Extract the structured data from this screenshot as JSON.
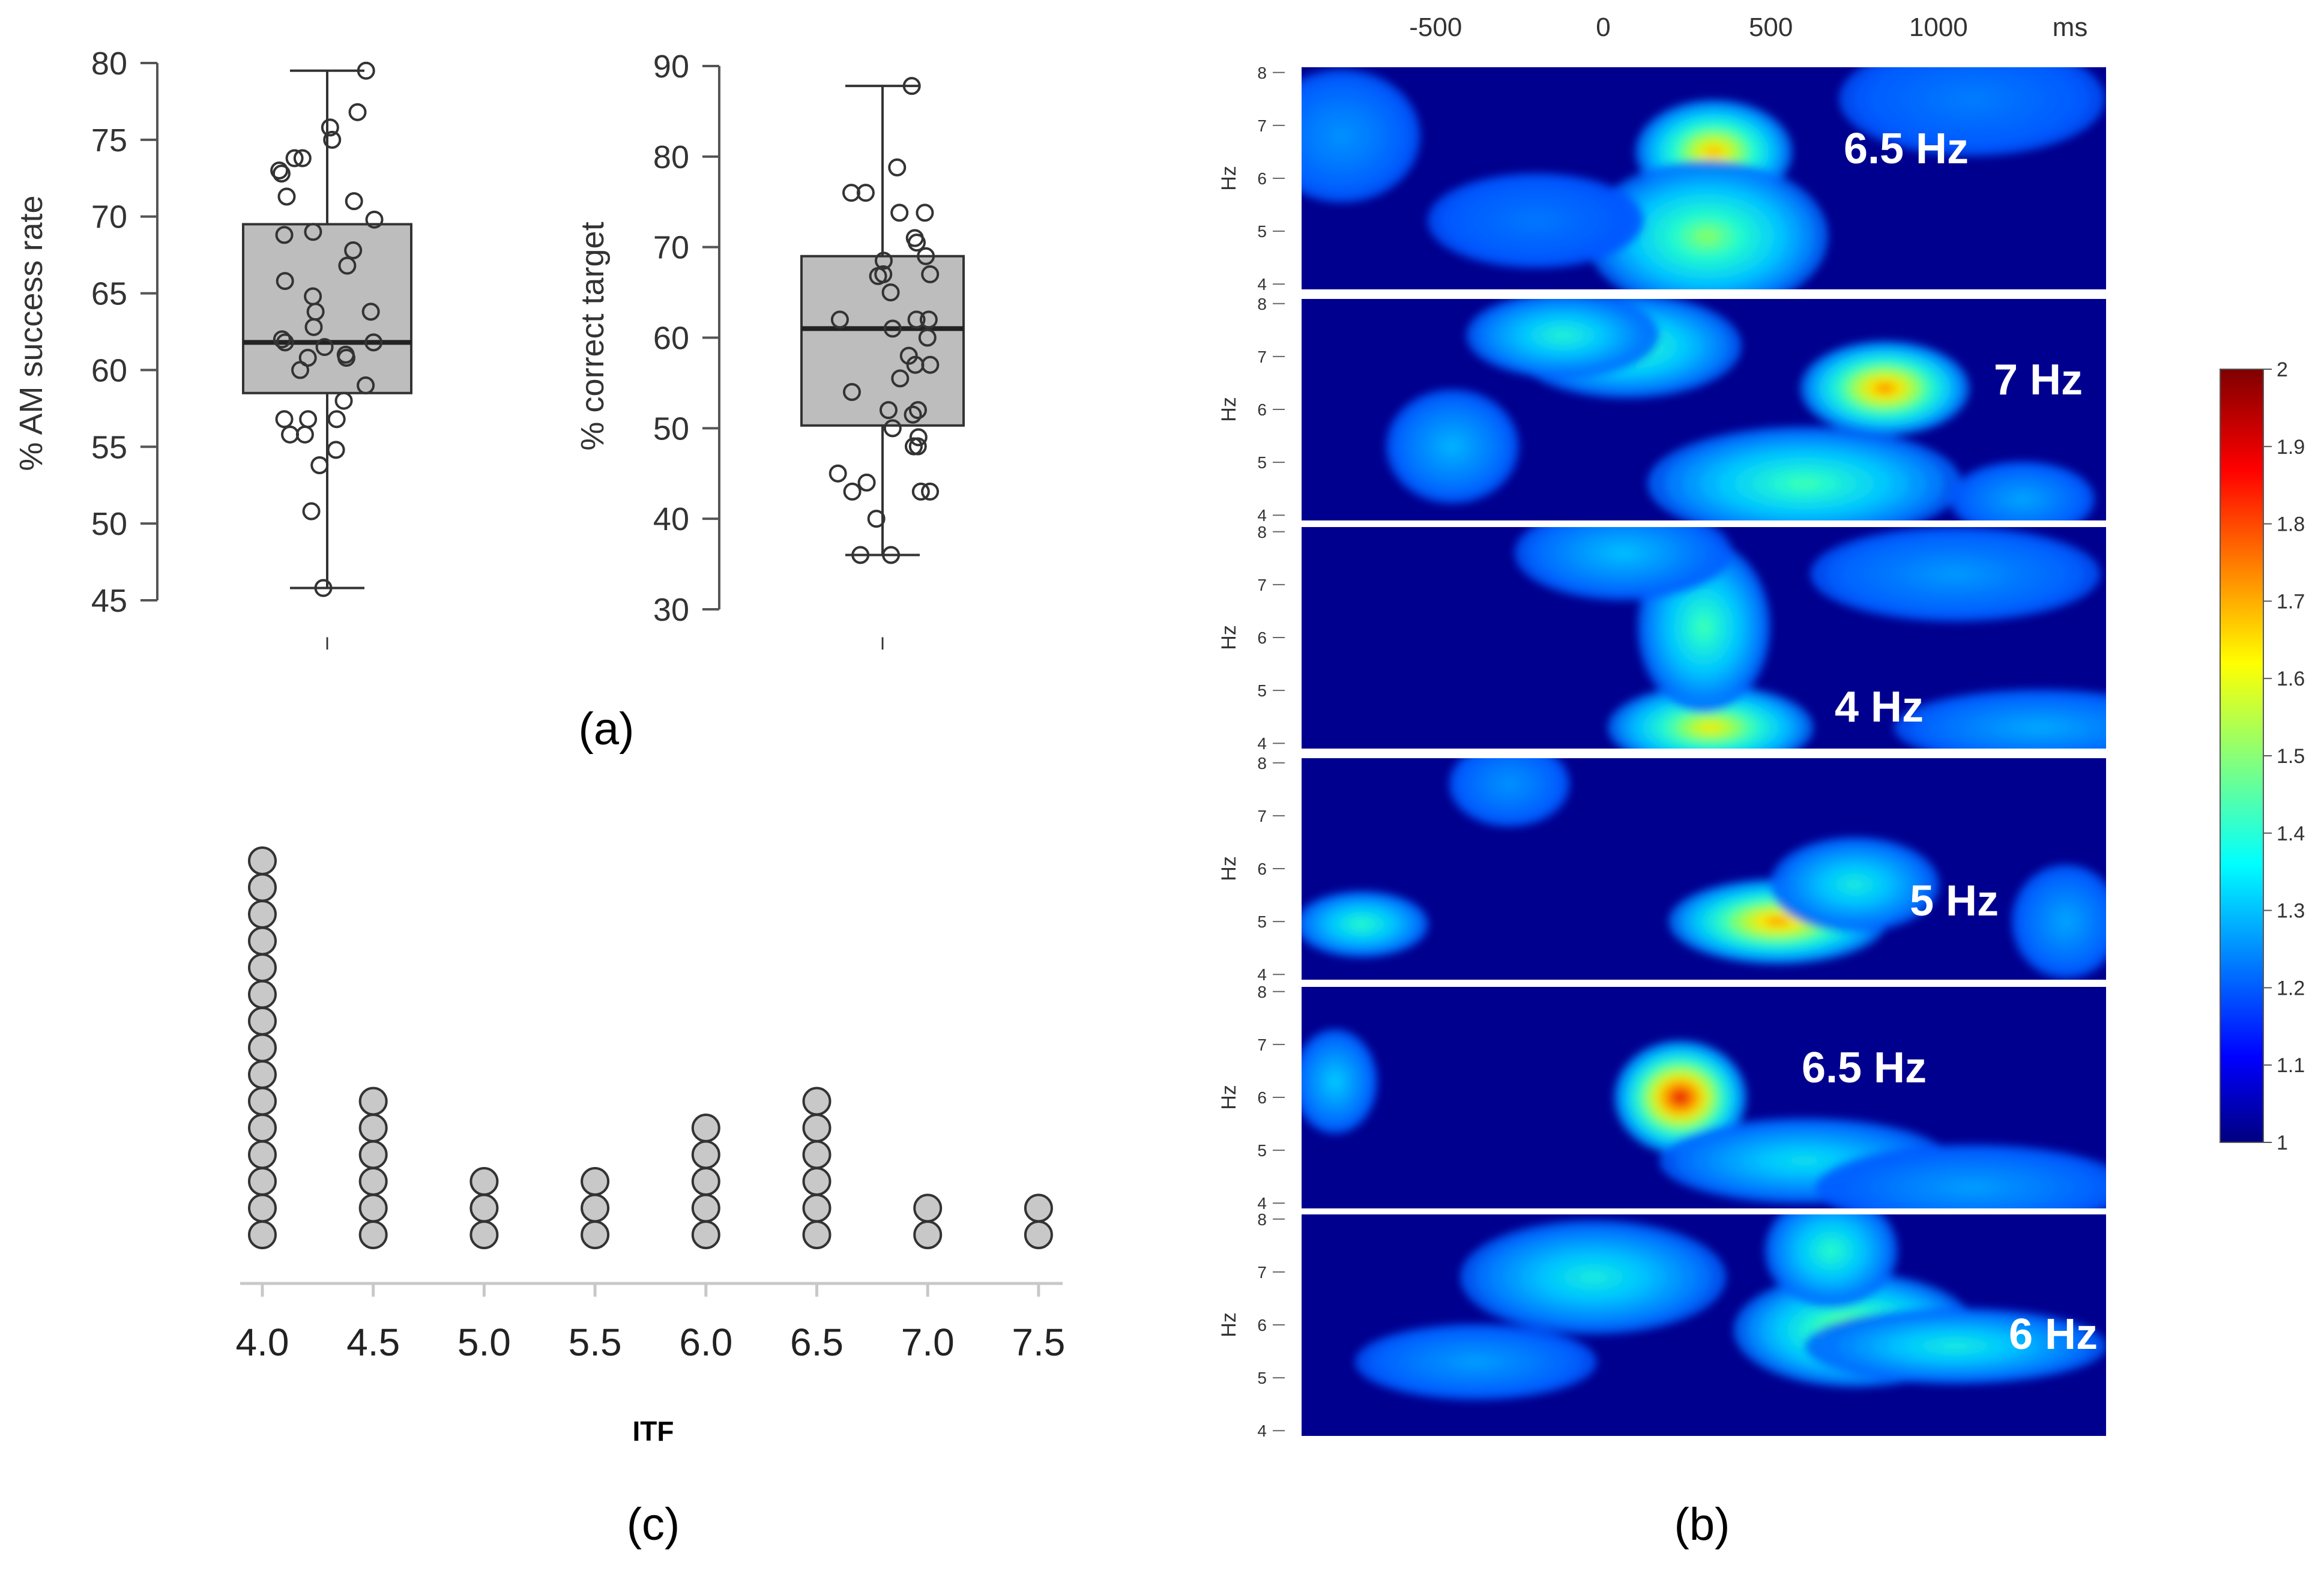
{
  "chart_data": [
    {
      "type": "box",
      "panel": "(a)",
      "ylabel": "% AM success rate",
      "ylim": [
        45,
        80
      ],
      "yticks": [
        45,
        50,
        55,
        60,
        65,
        70,
        75,
        80
      ],
      "xtick": "I",
      "box": {
        "min": 45.8,
        "q1": 58.5,
        "median": 61.8,
        "q3": 69.5,
        "max": 79.5
      },
      "points": [
        79.5,
        76.8,
        75.8,
        75.0,
        73.8,
        73.8,
        73.0,
        72.8,
        71.3,
        71.0,
        69.8,
        69.0,
        68.8,
        67.8,
        66.8,
        65.8,
        64.8,
        63.8,
        63.8,
        62.8,
        62.0,
        61.8,
        61.8,
        61.5,
        61.0,
        60.8,
        60.8,
        60.0,
        59.0,
        58.0,
        56.8,
        56.8,
        56.8,
        55.8,
        55.8,
        54.8,
        53.8,
        50.8,
        45.8
      ]
    },
    {
      "type": "box",
      "panel": "(a)",
      "ylabel": "% correct target",
      "ylim": [
        30,
        90
      ],
      "yticks": [
        30,
        40,
        50,
        60,
        70,
        80,
        90
      ],
      "xtick": "I",
      "box": {
        "min": 36.0,
        "q1": 50.3,
        "median": 61.0,
        "q3": 69.0,
        "max": 87.8
      },
      "points": [
        87.8,
        78.8,
        76.0,
        76.0,
        73.8,
        73.8,
        71.0,
        70.5,
        69.0,
        68.5,
        67.0,
        67.0,
        66.8,
        65.0,
        62.0,
        62.0,
        62.0,
        61.0,
        60.0,
        58.0,
        57.0,
        57.0,
        55.5,
        54.0,
        52.0,
        52.0,
        51.5,
        50.0,
        49.0,
        48.0,
        48.0,
        45.0,
        44.0,
        43.0,
        43.0,
        43.0,
        40.0,
        36.0,
        36.0
      ]
    },
    {
      "type": "heatmap",
      "panel": "(b)",
      "xlabel_unit": "ms",
      "xticks": [
        "-500",
        "0",
        "500",
        "1000",
        "ms"
      ],
      "xlim": [
        -900,
        1500
      ],
      "ylabel": "Hz",
      "yticks": [
        "4",
        "5",
        "6",
        "7",
        "8"
      ],
      "ylim": [
        4,
        8
      ],
      "colorbar": {
        "min": 1,
        "max": 2,
        "ticks": [
          "2",
          "1.9",
          "1.8",
          "1.7",
          "1.6",
          "1.5",
          "1.4",
          "1.3",
          "1.2",
          "1.1",
          "1"
        ]
      },
      "rows": [
        {
          "annotation": "6.5 Hz",
          "blobs": [
            {
              "t": 330,
              "f": 6.5,
              "st": 130,
              "sf": 0.55,
              "a": 0.72
            },
            {
              "t": 310,
              "f": 4.9,
              "st": 200,
              "sf": 0.8,
              "a": 0.5
            },
            {
              "t": -780,
              "f": 6.8,
              "st": 130,
              "sf": 0.7,
              "a": 0.12
            },
            {
              "t": -200,
              "f": 5.2,
              "st": 180,
              "sf": 0.5,
              "a": 0.07
            },
            {
              "t": 1100,
              "f": 7.5,
              "st": 220,
              "sf": 0.6,
              "a": 0.08
            }
          ]
        },
        {
          "annotation": "7 Hz",
          "blobs": [
            {
              "t": 840,
              "f": 6.4,
              "st": 140,
              "sf": 0.5,
              "a": 0.78
            },
            {
              "t": 600,
              "f": 4.6,
              "st": 260,
              "sf": 0.6,
              "a": 0.42
            },
            {
              "t": 70,
              "f": 7.2,
              "st": 190,
              "sf": 0.55,
              "a": 0.42
            },
            {
              "t": -120,
              "f": 7.4,
              "st": 160,
              "sf": 0.45,
              "a": 0.35
            },
            {
              "t": -450,
              "f": 5.3,
              "st": 110,
              "sf": 0.6,
              "a": 0.18
            },
            {
              "t": 1250,
              "f": 4.3,
              "st": 120,
              "sf": 0.4,
              "a": 0.15
            }
          ]
        },
        {
          "annotation": "4 Hz",
          "blobs": [
            {
              "t": 320,
              "f": 4.3,
              "st": 170,
              "sf": 0.45,
              "a": 0.65
            },
            {
              "t": 300,
              "f": 6.2,
              "st": 110,
              "sf": 0.9,
              "a": 0.42
            },
            {
              "t": 60,
              "f": 7.6,
              "st": 180,
              "sf": 0.5,
              "a": 0.2
            },
            {
              "t": 1300,
              "f": 4.3,
              "st": 240,
              "sf": 0.4,
              "a": 0.16
            },
            {
              "t": 1050,
              "f": 7.2,
              "st": 240,
              "sf": 0.5,
              "a": 0.13
            }
          ]
        },
        {
          "annotation": "5 Hz",
          "blobs": [
            {
              "t": 520,
              "f": 5.0,
              "st": 180,
              "sf": 0.45,
              "a": 0.76
            },
            {
              "t": 750,
              "f": 5.7,
              "st": 140,
              "sf": 0.5,
              "a": 0.32
            },
            {
              "t": -720,
              "f": 4.95,
              "st": 110,
              "sf": 0.35,
              "a": 0.38
            },
            {
              "t": -280,
              "f": 7.6,
              "st": 100,
              "sf": 0.45,
              "a": 0.12
            },
            {
              "t": 1380,
              "f": 5.0,
              "st": 90,
              "sf": 0.6,
              "a": 0.15
            }
          ]
        },
        {
          "annotation": "6.5 Hz",
          "blobs": [
            {
              "t": 230,
              "f": 6.0,
              "st": 110,
              "sf": 0.6,
              "a": 0.95
            },
            {
              "t": 600,
              "f": 4.8,
              "st": 240,
              "sf": 0.45,
              "a": 0.28
            },
            {
              "t": -800,
              "f": 6.3,
              "st": 70,
              "sf": 0.55,
              "a": 0.22
            },
            {
              "t": 1100,
              "f": 4.3,
              "st": 260,
              "sf": 0.45,
              "a": 0.14
            }
          ]
        },
        {
          "annotation": "6 Hz",
          "blobs": [
            {
              "t": 750,
              "f": 5.9,
              "st": 200,
              "sf": 0.6,
              "a": 0.55
            },
            {
              "t": 680,
              "f": 7.4,
              "st": 110,
              "sf": 0.6,
              "a": 0.38
            },
            {
              "t": 1050,
              "f": 5.6,
              "st": 250,
              "sf": 0.4,
              "a": 0.32
            },
            {
              "t": -30,
              "f": 6.9,
              "st": 220,
              "sf": 0.6,
              "a": 0.32
            },
            {
              "t": -380,
              "f": 5.3,
              "st": 200,
              "sf": 0.4,
              "a": 0.14
            }
          ]
        }
      ]
    },
    {
      "type": "dotplot",
      "panel": "(c)",
      "xlabel": "ITF",
      "categories": [
        "4.0",
        "4.5",
        "5.0",
        "5.5",
        "6.0",
        "6.5",
        "7.0",
        "7.5"
      ],
      "values": [
        15,
        6,
        3,
        3,
        5,
        6,
        2,
        2
      ]
    }
  ]
}
